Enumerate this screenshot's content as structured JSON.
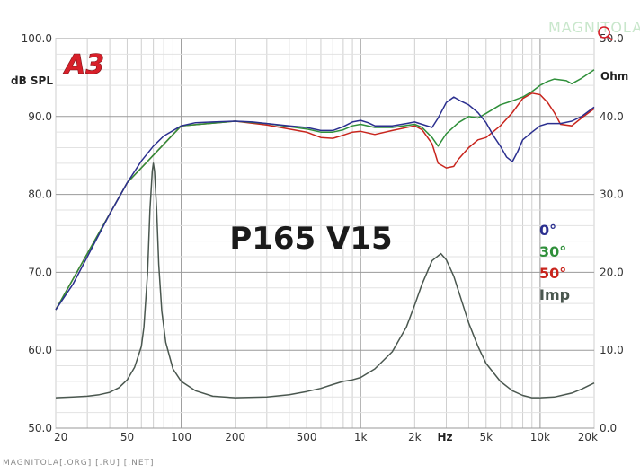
{
  "logo": {
    "text": "A3",
    "color": "#d8202a"
  },
  "watermark": {
    "top": "MAGNITOLA",
    "bottom": "MAGNITOLA[.ORG] [.RU] [.NET]"
  },
  "chart_data": {
    "type": "line",
    "title": "P165 V15",
    "left_axis_label": "dB SPL",
    "right_axis_label": "Ohm",
    "x_unit_label": "Hz",
    "x_scale": "log",
    "xlim": [
      20,
      20000
    ],
    "ylim": [
      50,
      100
    ],
    "y2lim": [
      0,
      50
    ],
    "grid": true,
    "x_ticks": [
      {
        "value": 20,
        "label": "20"
      },
      {
        "value": 50,
        "label": "50"
      },
      {
        "value": 100,
        "label": "100"
      },
      {
        "value": 200,
        "label": "200"
      },
      {
        "value": 500,
        "label": "500"
      },
      {
        "value": 1000,
        "label": "1k"
      },
      {
        "value": 2000,
        "label": "2k"
      },
      {
        "value": 5000,
        "label": "5k"
      },
      {
        "value": 10000,
        "label": "10k"
      },
      {
        "value": 20000,
        "label": "20k"
      }
    ],
    "y_ticks": [
      {
        "value": 50,
        "label": "50.0"
      },
      {
        "value": 60,
        "label": "60.0"
      },
      {
        "value": 70,
        "label": "70.0"
      },
      {
        "value": 80,
        "label": "80.0"
      },
      {
        "value": 90,
        "label": "90.0"
      },
      {
        "value": 100,
        "label": "100.0"
      }
    ],
    "y2_ticks": [
      {
        "value": 0,
        "label": "0.0"
      },
      {
        "value": 10,
        "label": "10.0"
      },
      {
        "value": 20,
        "label": "20.0"
      },
      {
        "value": 30,
        "label": "30.0"
      },
      {
        "value": 40,
        "label": "40.0"
      },
      {
        "value": 50,
        "label": "50.0"
      }
    ],
    "series": [
      {
        "name": "0°",
        "axis": "left",
        "color": "#2b2f8f",
        "points": [
          [
            20,
            65.2
          ],
          [
            25,
            68.5
          ],
          [
            30,
            72
          ],
          [
            40,
            77.5
          ],
          [
            50,
            81.5
          ],
          [
            60,
            84.3
          ],
          [
            70,
            86.2
          ],
          [
            80,
            87.5
          ],
          [
            100,
            88.8
          ],
          [
            120,
            89.2
          ],
          [
            150,
            89.3
          ],
          [
            200,
            89.4
          ],
          [
            250,
            89.3
          ],
          [
            300,
            89.1
          ],
          [
            400,
            88.8
          ],
          [
            500,
            88.6
          ],
          [
            600,
            88.2
          ],
          [
            700,
            88.2
          ],
          [
            800,
            88.7
          ],
          [
            900,
            89.3
          ],
          [
            1000,
            89.5
          ],
          [
            1100,
            89.2
          ],
          [
            1200,
            88.8
          ],
          [
            1500,
            88.8
          ],
          [
            1800,
            89.1
          ],
          [
            2000,
            89.3
          ],
          [
            2200,
            89.0
          ],
          [
            2500,
            88.6
          ],
          [
            2700,
            89.8
          ],
          [
            3000,
            91.8
          ],
          [
            3300,
            92.5
          ],
          [
            3600,
            92.0
          ],
          [
            4000,
            91.5
          ],
          [
            4500,
            90.5
          ],
          [
            5000,
            89.2
          ],
          [
            5500,
            87.5
          ],
          [
            6000,
            86.2
          ],
          [
            6500,
            84.8
          ],
          [
            7000,
            84.2
          ],
          [
            7500,
            85.5
          ],
          [
            8000,
            87.0
          ],
          [
            9000,
            88.0
          ],
          [
            10000,
            88.8
          ],
          [
            11000,
            89.1
          ],
          [
            13000,
            89.1
          ],
          [
            15000,
            89.4
          ],
          [
            17000,
            90.0
          ],
          [
            20000,
            91.2
          ]
        ]
      },
      {
        "name": "30°",
        "axis": "left",
        "color": "#2f8f3a",
        "points": [
          [
            20,
            65.2
          ],
          [
            50,
            81.5
          ],
          [
            100,
            88.8
          ],
          [
            200,
            89.4
          ],
          [
            300,
            89.1
          ],
          [
            500,
            88.4
          ],
          [
            600,
            88.0
          ],
          [
            700,
            88.0
          ],
          [
            800,
            88.3
          ],
          [
            900,
            88.8
          ],
          [
            1000,
            89.0
          ],
          [
            1200,
            88.6
          ],
          [
            1500,
            88.6
          ],
          [
            2000,
            89.0
          ],
          [
            2200,
            88.6
          ],
          [
            2500,
            87.3
          ],
          [
            2700,
            86.2
          ],
          [
            3000,
            87.8
          ],
          [
            3500,
            89.2
          ],
          [
            4000,
            90.0
          ],
          [
            4500,
            89.8
          ],
          [
            5000,
            90.4
          ],
          [
            6000,
            91.5
          ],
          [
            7000,
            92.0
          ],
          [
            8000,
            92.5
          ],
          [
            9000,
            93.2
          ],
          [
            10000,
            94.0
          ],
          [
            11000,
            94.5
          ],
          [
            12000,
            94.8
          ],
          [
            14000,
            94.6
          ],
          [
            15000,
            94.2
          ],
          [
            17000,
            94.9
          ],
          [
            20000,
            96.0
          ]
        ]
      },
      {
        "name": "50°",
        "axis": "left",
        "color": "#c8251d",
        "points": [
          [
            20,
            65.2
          ],
          [
            50,
            81.5
          ],
          [
            100,
            88.8
          ],
          [
            200,
            89.4
          ],
          [
            300,
            88.9
          ],
          [
            500,
            88.0
          ],
          [
            600,
            87.3
          ],
          [
            700,
            87.2
          ],
          [
            800,
            87.6
          ],
          [
            900,
            88.0
          ],
          [
            1000,
            88.1
          ],
          [
            1200,
            87.7
          ],
          [
            1500,
            88.2
          ],
          [
            2000,
            88.8
          ],
          [
            2200,
            88.3
          ],
          [
            2500,
            86.5
          ],
          [
            2700,
            84.0
          ],
          [
            3000,
            83.4
          ],
          [
            3300,
            83.6
          ],
          [
            3500,
            84.5
          ],
          [
            4000,
            86.0
          ],
          [
            4500,
            87.0
          ],
          [
            5000,
            87.3
          ],
          [
            6000,
            88.8
          ],
          [
            7000,
            90.5
          ],
          [
            8000,
            92.3
          ],
          [
            9000,
            93.0
          ],
          [
            10000,
            92.8
          ],
          [
            11000,
            91.8
          ],
          [
            12000,
            90.5
          ],
          [
            13000,
            89.0
          ],
          [
            15000,
            88.8
          ],
          [
            17000,
            89.8
          ],
          [
            20000,
            91.0
          ]
        ]
      },
      {
        "name": "Imp",
        "axis": "right",
        "color": "#4a574f",
        "points": [
          [
            20,
            3.9
          ],
          [
            25,
            4.0
          ],
          [
            30,
            4.1
          ],
          [
            35,
            4.3
          ],
          [
            40,
            4.6
          ],
          [
            45,
            5.2
          ],
          [
            50,
            6.2
          ],
          [
            55,
            7.8
          ],
          [
            60,
            10.5
          ],
          [
            62,
            13
          ],
          [
            65,
            20
          ],
          [
            67,
            28
          ],
          [
            69,
            33
          ],
          [
            70,
            34.0
          ],
          [
            71,
            33
          ],
          [
            73,
            28
          ],
          [
            75,
            21
          ],
          [
            78,
            15
          ],
          [
            82,
            11
          ],
          [
            90,
            7.6
          ],
          [
            100,
            6.0
          ],
          [
            120,
            4.8
          ],
          [
            150,
            4.1
          ],
          [
            200,
            3.9
          ],
          [
            300,
            4.0
          ],
          [
            400,
            4.3
          ],
          [
            500,
            4.7
          ],
          [
            600,
            5.1
          ],
          [
            700,
            5.6
          ],
          [
            800,
            6.0
          ],
          [
            900,
            6.2
          ],
          [
            1000,
            6.5
          ],
          [
            1200,
            7.6
          ],
          [
            1500,
            9.8
          ],
          [
            1800,
            13.0
          ],
          [
            2000,
            15.8
          ],
          [
            2200,
            18.5
          ],
          [
            2500,
            21.5
          ],
          [
            2800,
            22.4
          ],
          [
            3000,
            21.6
          ],
          [
            3300,
            19.5
          ],
          [
            3600,
            16.8
          ],
          [
            4000,
            13.5
          ],
          [
            4500,
            10.5
          ],
          [
            5000,
            8.3
          ],
          [
            6000,
            6.0
          ],
          [
            7000,
            4.8
          ],
          [
            8000,
            4.2
          ],
          [
            9000,
            3.9
          ],
          [
            10000,
            3.9
          ],
          [
            12000,
            4.0
          ],
          [
            15000,
            4.5
          ],
          [
            17000,
            5.0
          ],
          [
            20000,
            5.8
          ]
        ]
      }
    ]
  }
}
